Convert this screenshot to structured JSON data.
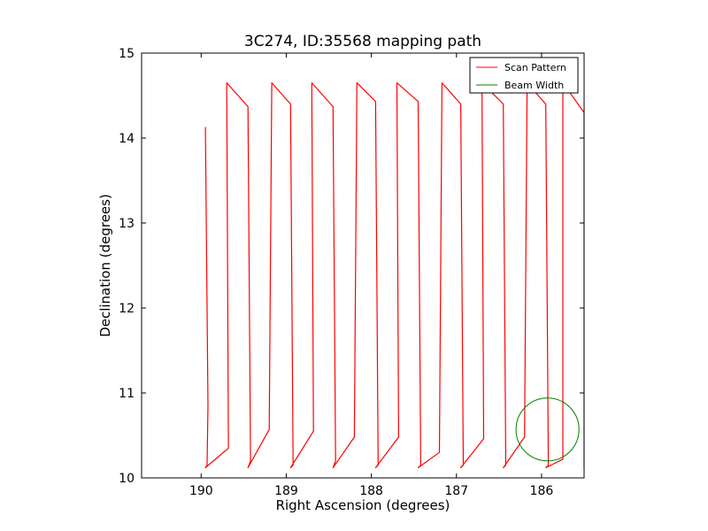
{
  "chart_data": {
    "type": "line",
    "title": "3C274, ID:35568 mapping path",
    "xlabel": "Right Ascension (degrees)",
    "ylabel": "Declination (degrees)",
    "xlim": [
      190.7,
      185.5
    ],
    "ylim": [
      10,
      15
    ],
    "xticks": [
      190,
      189,
      188,
      187,
      186
    ],
    "yticks": [
      10,
      11,
      12,
      13,
      14,
      15
    ],
    "legend": {
      "position": "top-right"
    },
    "colors": {
      "scan": "#ff0000",
      "beam": "#008000"
    },
    "series": [
      {
        "name": "Scan Pattern",
        "x": [
          189.95,
          189.92,
          189.93,
          189.95,
          189.68,
          189.7,
          189.45,
          189.42,
          189.45,
          189.2,
          189.17,
          188.95,
          188.92,
          188.95,
          188.68,
          188.7,
          188.45,
          188.42,
          188.45,
          188.2,
          188.17,
          187.95,
          187.92,
          187.95,
          187.68,
          187.7,
          187.45,
          187.42,
          187.45,
          187.2,
          187.17,
          186.95,
          186.92,
          186.95,
          186.68,
          186.7,
          186.45,
          186.42,
          186.45,
          186.2,
          186.17,
          185.95,
          185.92,
          185.95,
          185.75,
          185.75,
          185.5,
          185.5,
          185.48
        ],
        "y": [
          14.13,
          10.85,
          10.15,
          10.12,
          10.35,
          14.65,
          14.37,
          10.2,
          10.12,
          10.57,
          14.65,
          14.4,
          10.15,
          10.12,
          10.55,
          14.65,
          14.37,
          10.2,
          10.12,
          10.48,
          14.65,
          14.43,
          10.15,
          10.12,
          10.48,
          14.65,
          14.43,
          10.15,
          10.12,
          10.3,
          14.65,
          14.4,
          10.15,
          10.12,
          10.46,
          14.65,
          14.4,
          10.15,
          10.12,
          10.48,
          14.65,
          14.4,
          10.15,
          10.12,
          10.22,
          14.65,
          14.3,
          10.12,
          10.7
        ]
      },
      {
        "name": "Beam Width",
        "type": "circle",
        "center": [
          185.93,
          10.57
        ],
        "radius_deg": 0.37
      }
    ]
  }
}
